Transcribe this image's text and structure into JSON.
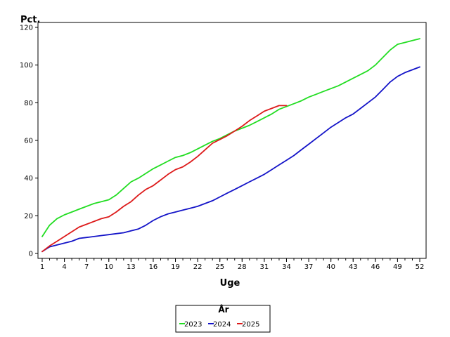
{
  "chart_data": {
    "type": "line",
    "title": "",
    "xlabel": "Uge",
    "ylabel": "Pct.",
    "xlim": [
      1,
      52
    ],
    "ylim": [
      0,
      120
    ],
    "x_ticks": [
      1,
      4,
      7,
      10,
      13,
      16,
      19,
      22,
      25,
      28,
      31,
      34,
      37,
      40,
      43,
      46,
      49,
      52
    ],
    "y_ticks": [
      0,
      20,
      40,
      60,
      80,
      100,
      120
    ],
    "grid": false,
    "legend": {
      "title": "År",
      "placement": "bottom-center"
    },
    "series": [
      {
        "name": "2023",
        "color": "#22dd22",
        "x": [
          1,
          2,
          3,
          4,
          5,
          6,
          7,
          8,
          9,
          10,
          11,
          12,
          13,
          14,
          15,
          16,
          17,
          18,
          19,
          20,
          21,
          22,
          23,
          24,
          25,
          26,
          27,
          28,
          29,
          30,
          31,
          32,
          33,
          34,
          35,
          36,
          37,
          38,
          39,
          40,
          41,
          42,
          43,
          44,
          45,
          46,
          47,
          48,
          49,
          50,
          51,
          52
        ],
        "values": [
          9,
          15,
          18.5,
          20.5,
          22,
          23.5,
          25,
          26.5,
          27.5,
          28.5,
          31,
          34.5,
          38,
          40,
          42.5,
          45,
          47,
          49,
          51,
          52,
          53.5,
          55.5,
          57.5,
          59.5,
          61,
          63,
          65,
          66.5,
          68,
          70,
          72,
          74,
          76.5,
          78,
          79.5,
          81,
          83,
          84.5,
          86,
          87.5,
          89,
          91,
          93,
          95,
          97,
          100,
          104,
          108,
          111,
          112,
          113,
          114
        ]
      },
      {
        "name": "2024",
        "color": "#1414c8",
        "x": [
          1,
          2,
          3,
          4,
          5,
          6,
          7,
          8,
          9,
          10,
          11,
          12,
          13,
          14,
          15,
          16,
          17,
          18,
          19,
          20,
          21,
          22,
          23,
          24,
          25,
          26,
          27,
          28,
          29,
          30,
          31,
          32,
          33,
          34,
          35,
          36,
          37,
          38,
          39,
          40,
          41,
          42,
          43,
          44,
          45,
          46,
          47,
          48,
          49,
          50,
          51,
          52
        ],
        "values": [
          1,
          3.5,
          4.5,
          5.5,
          6.5,
          8,
          8.5,
          9,
          9.5,
          10,
          10.5,
          11,
          12,
          13,
          15,
          17.5,
          19.5,
          21,
          22,
          23,
          24,
          25,
          26.5,
          28,
          30,
          32,
          34,
          36,
          38,
          40,
          42,
          44.5,
          47,
          49.5,
          52,
          55,
          58,
          61,
          64,
          67,
          69.5,
          72,
          74,
          77,
          80,
          83,
          87,
          91,
          94,
          96,
          97.5,
          99
        ]
      },
      {
        "name": "2025",
        "color": "#dd1a1a",
        "x": [
          1,
          2,
          3,
          4,
          5,
          6,
          7,
          8,
          9,
          10,
          11,
          12,
          13,
          14,
          15,
          16,
          17,
          18,
          19,
          20,
          21,
          22,
          23,
          24,
          25,
          26,
          27,
          28,
          29,
          30,
          31,
          32,
          33,
          34
        ],
        "values": [
          1,
          4,
          6.5,
          9,
          11.5,
          14,
          15.5,
          17,
          18.5,
          19.5,
          22,
          25,
          27.5,
          31,
          34,
          36,
          39,
          42,
          44.5,
          46,
          48.5,
          51.5,
          55,
          58.5,
          60.5,
          62.5,
          65,
          67.5,
          70.5,
          73,
          75.5,
          77,
          78.5,
          78.5
        ]
      }
    ]
  }
}
